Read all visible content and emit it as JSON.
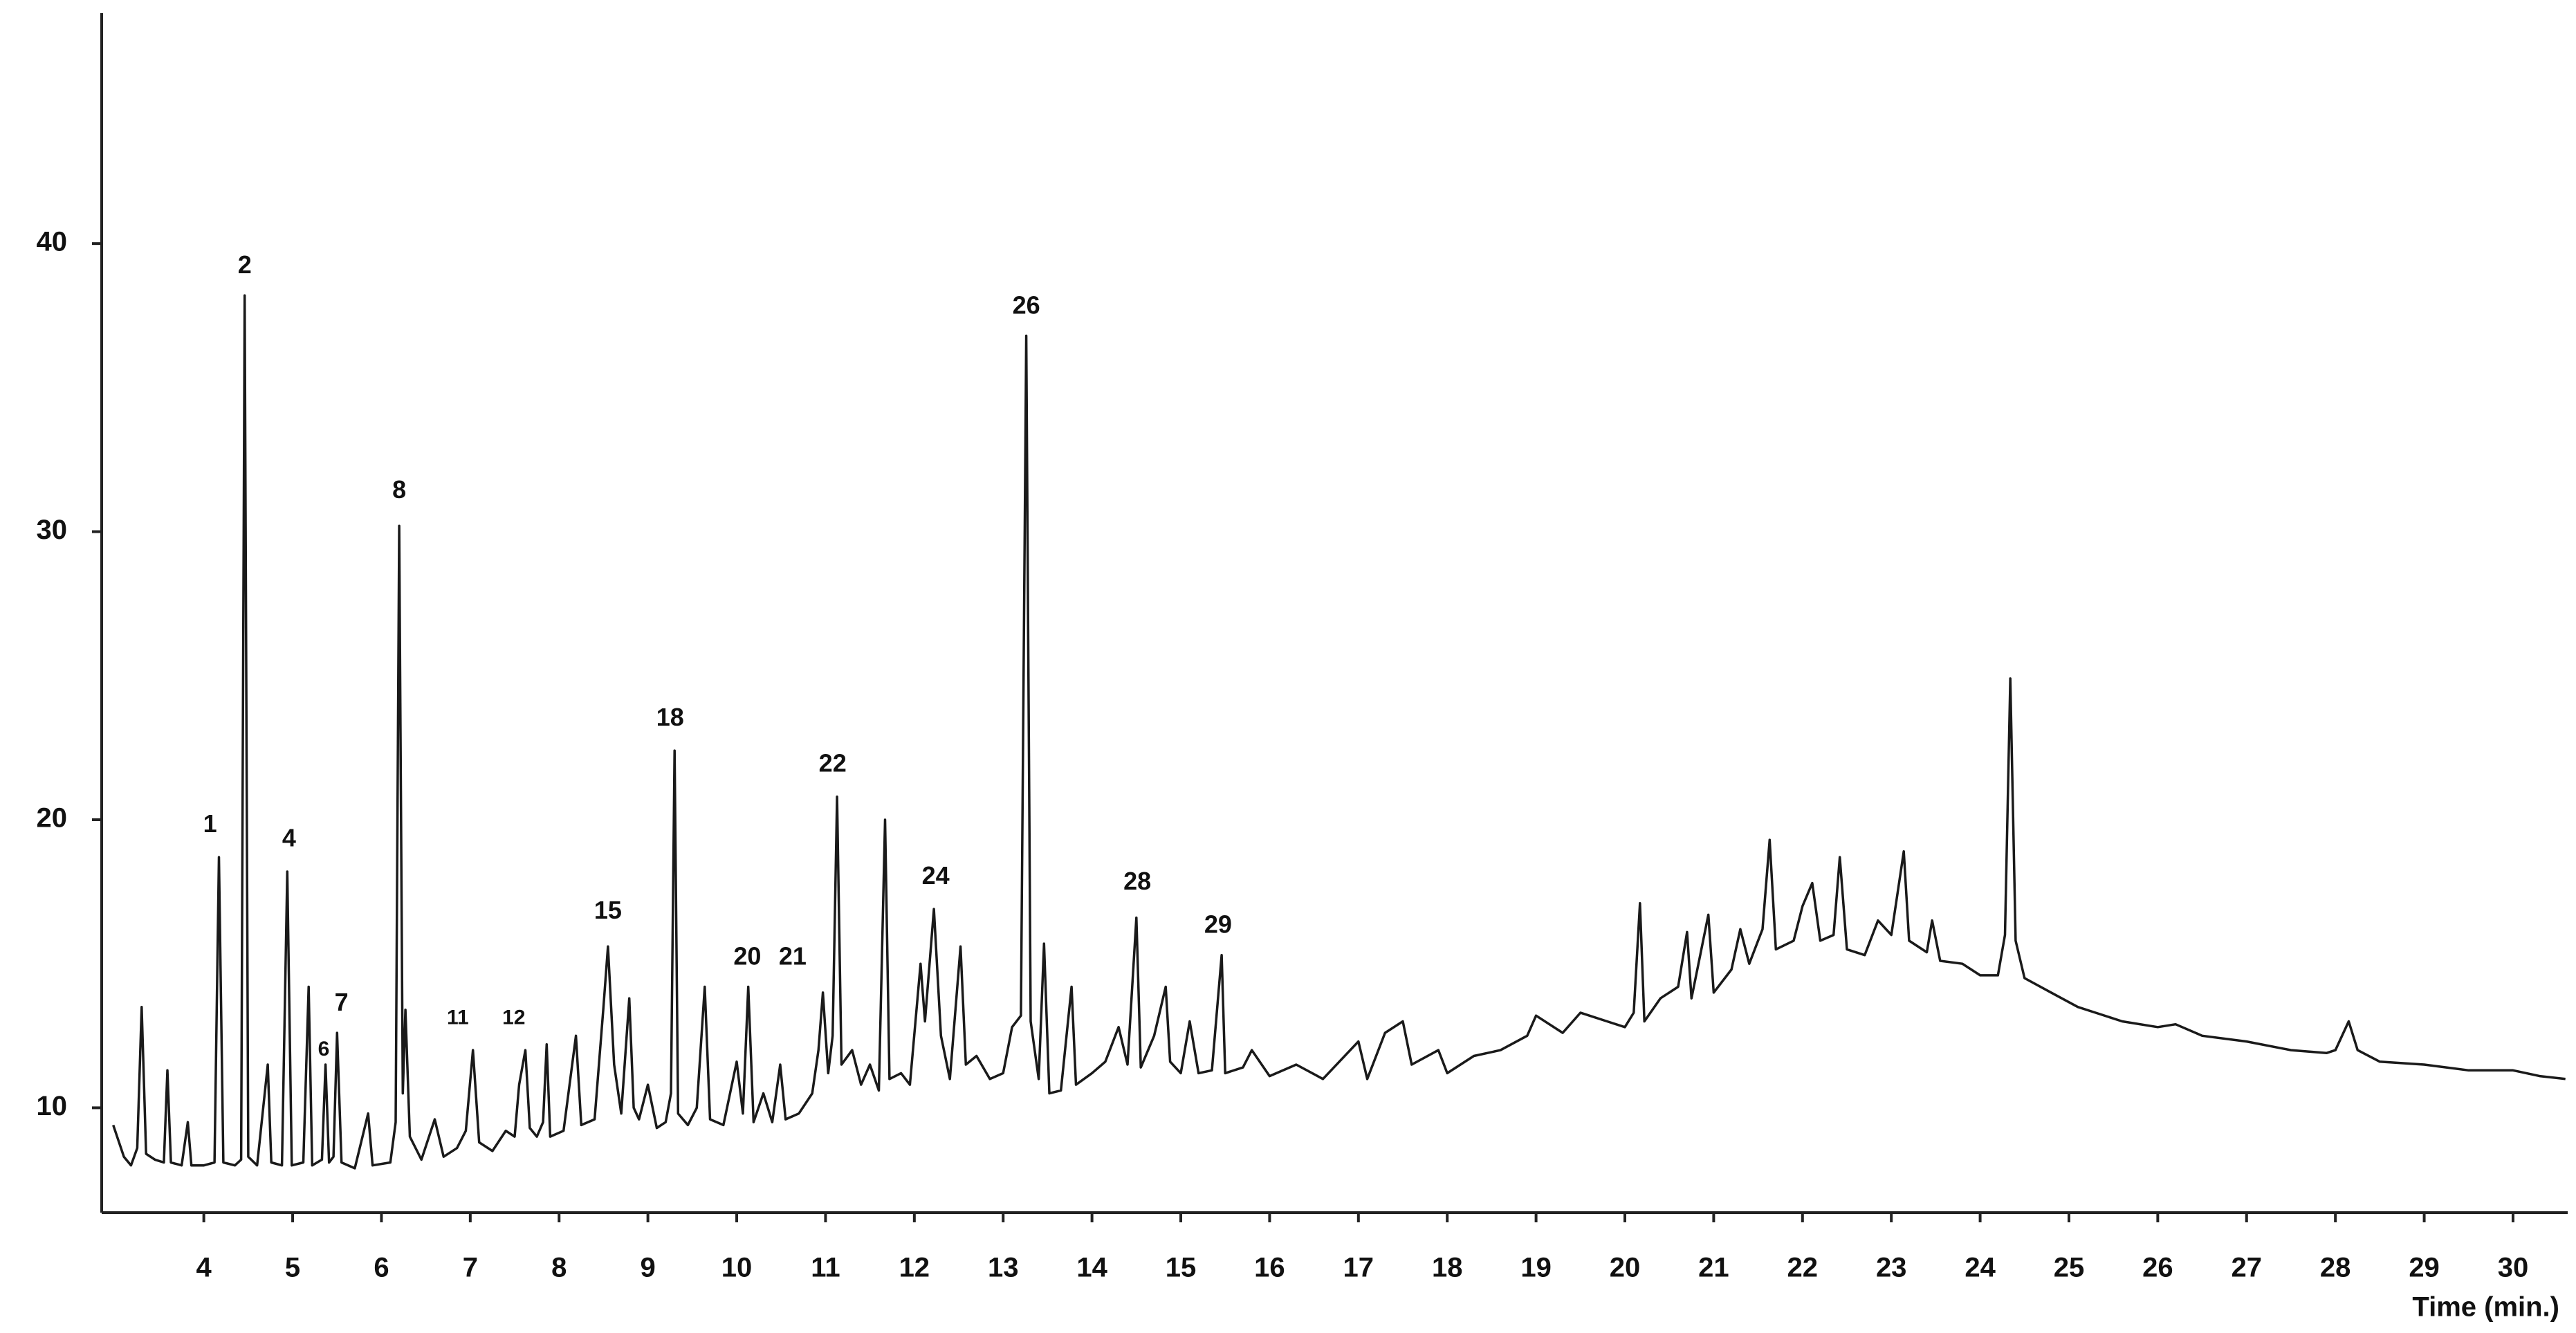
{
  "chart_data": {
    "type": "line",
    "x_label": "Time (min.)",
    "color": "#1a1a1a",
    "xlim": [
      2.85,
      30.6
    ],
    "ylim": [
      6.36,
      48
    ],
    "xticks": [
      4,
      5,
      6,
      7,
      8,
      9,
      10,
      11,
      12,
      13,
      14,
      15,
      16,
      17,
      18,
      19,
      20,
      21,
      22,
      23,
      24,
      25,
      26,
      27,
      28,
      29,
      30
    ],
    "yticks": [
      10,
      20,
      30,
      40
    ],
    "x": [
      2.98,
      3.1,
      3.18,
      3.25,
      3.3,
      3.35,
      3.45,
      3.55,
      3.59,
      3.63,
      3.75,
      3.82,
      3.86,
      4.0,
      4.12,
      4.17,
      4.22,
      4.35,
      4.42,
      4.46,
      4.5,
      4.6,
      4.72,
      4.76,
      4.88,
      4.94,
      4.99,
      5.12,
      5.18,
      5.22,
      5.33,
      5.37,
      5.41,
      5.46,
      5.5,
      5.55,
      5.7,
      5.85,
      5.9,
      6.1,
      6.16,
      6.2,
      6.24,
      6.27,
      6.32,
      6.45,
      6.6,
      6.7,
      6.85,
      6.95,
      7.03,
      7.1,
      7.25,
      7.4,
      7.5,
      7.55,
      7.62,
      7.67,
      7.75,
      7.82,
      7.86,
      7.9,
      8.05,
      8.19,
      8.25,
      8.4,
      8.5,
      8.55,
      8.62,
      8.7,
      8.79,
      8.84,
      8.9,
      9.0,
      9.1,
      9.2,
      9.26,
      9.3,
      9.34,
      9.45,
      9.55,
      9.64,
      9.7,
      9.85,
      10.0,
      10.07,
      10.13,
      10.19,
      10.3,
      10.4,
      10.49,
      10.55,
      10.7,
      10.85,
      10.92,
      10.97,
      11.03,
      11.08,
      11.13,
      11.18,
      11.3,
      11.4,
      11.5,
      11.6,
      11.67,
      11.72,
      11.85,
      11.95,
      12.07,
      12.12,
      12.22,
      12.3,
      12.4,
      12.52,
      12.58,
      12.7,
      12.85,
      13.0,
      13.1,
      13.2,
      13.26,
      13.31,
      13.4,
      13.46,
      13.52,
      13.65,
      13.77,
      13.82,
      14.0,
      14.15,
      14.3,
      14.4,
      14.5,
      14.55,
      14.7,
      14.83,
      14.88,
      15.0,
      15.1,
      15.2,
      15.35,
      15.46,
      15.5,
      15.7,
      15.8,
      16.0,
      16.3,
      16.6,
      17.0,
      17.1,
      17.3,
      17.5,
      17.6,
      17.9,
      18.0,
      18.3,
      18.6,
      18.9,
      19.0,
      19.3,
      19.5,
      19.8,
      20.0,
      20.1,
      20.17,
      20.22,
      20.4,
      20.6,
      20.7,
      20.75,
      20.94,
      21.0,
      21.2,
      21.3,
      21.4,
      21.55,
      21.63,
      21.7,
      21.9,
      22.0,
      22.11,
      22.2,
      22.35,
      22.42,
      22.5,
      22.7,
      22.85,
      23.0,
      23.14,
      23.2,
      23.4,
      23.46,
      23.55,
      23.8,
      24.0,
      24.2,
      24.28,
      24.34,
      24.4,
      24.5,
      24.8,
      25.1,
      25.3,
      25.6,
      26.0,
      26.2,
      26.5,
      27.0,
      27.5,
      27.9,
      28.0,
      28.15,
      28.25,
      28.5,
      29.0,
      29.5,
      30.0,
      30.3,
      30.59
    ],
    "values": [
      9.4,
      8.3,
      8.0,
      8.6,
      13.5,
      8.4,
      8.2,
      8.1,
      11.3,
      8.1,
      8.0,
      9.5,
      8.0,
      8.0,
      8.1,
      18.7,
      8.1,
      8.0,
      8.2,
      38.2,
      8.3,
      8.0,
      11.5,
      8.1,
      8.0,
      18.2,
      8.0,
      8.1,
      14.2,
      8.0,
      8.2,
      11.5,
      8.1,
      8.3,
      12.6,
      8.1,
      7.9,
      9.8,
      8.0,
      8.1,
      9.5,
      30.2,
      10.5,
      13.4,
      9.0,
      8.2,
      9.6,
      8.3,
      8.6,
      9.2,
      12.0,
      8.8,
      8.5,
      9.2,
      9.0,
      10.8,
      12.0,
      9.3,
      9.0,
      9.5,
      12.2,
      9.0,
      9.2,
      12.5,
      9.4,
      9.6,
      13.5,
      15.6,
      11.5,
      9.8,
      13.8,
      10.0,
      9.6,
      10.8,
      9.3,
      9.5,
      10.5,
      22.4,
      9.8,
      9.4,
      10.0,
      14.2,
      9.6,
      9.4,
      11.6,
      9.8,
      14.2,
      9.5,
      10.5,
      9.5,
      11.5,
      9.6,
      9.8,
      10.5,
      12.0,
      14.0,
      11.2,
      12.5,
      20.8,
      11.5,
      12.0,
      10.8,
      11.5,
      10.6,
      20.0,
      11.0,
      11.2,
      10.8,
      15.0,
      13.0,
      16.9,
      12.5,
      11.0,
      15.6,
      11.5,
      11.8,
      11.0,
      11.2,
      12.8,
      13.2,
      36.8,
      13.0,
      11.0,
      15.7,
      10.5,
      10.6,
      14.2,
      10.8,
      11.2,
      11.6,
      12.8,
      11.5,
      16.6,
      11.4,
      12.5,
      14.2,
      11.6,
      11.2,
      13.0,
      11.2,
      11.3,
      15.3,
      11.2,
      11.4,
      12.0,
      11.1,
      11.5,
      11.0,
      12.3,
      11.0,
      12.6,
      13.0,
      11.5,
      12.0,
      11.2,
      11.8,
      12.0,
      12.5,
      13.2,
      12.6,
      13.3,
      13.0,
      12.8,
      13.3,
      17.1,
      13.0,
      13.8,
      14.2,
      16.1,
      13.8,
      16.7,
      14.0,
      14.8,
      16.2,
      15.0,
      16.2,
      19.3,
      15.5,
      15.8,
      17.0,
      17.8,
      15.8,
      16.0,
      18.7,
      15.5,
      15.3,
      16.5,
      16.0,
      18.9,
      15.8,
      15.4,
      16.5,
      15.1,
      15.0,
      14.6,
      14.6,
      16.0,
      24.9,
      15.8,
      14.5,
      14.0,
      13.5,
      13.3,
      13.0,
      12.8,
      12.9,
      12.5,
      12.3,
      12.0,
      11.9,
      12.0,
      13.0,
      12.0,
      11.6,
      11.5,
      11.3,
      11.3,
      11.1,
      11.0
    ],
    "annotations": [
      {
        "text": "1",
        "x": 4.07,
        "y": 19.8
      },
      {
        "text": "2",
        "x": 4.46,
        "y": 39.2
      },
      {
        "text": "4",
        "x": 4.96,
        "y": 19.3
      },
      {
        "text": "6",
        "x": 5.35,
        "y": 12.0
      },
      {
        "text": "7",
        "x": 5.55,
        "y": 13.6
      },
      {
        "text": "8",
        "x": 6.2,
        "y": 31.4
      },
      {
        "text": "11",
        "x": 6.86,
        "y": 13.1
      },
      {
        "text": "12",
        "x": 7.49,
        "y": 13.1
      },
      {
        "text": "15",
        "x": 8.55,
        "y": 16.8
      },
      {
        "text": "18",
        "x": 9.25,
        "y": 23.5
      },
      {
        "text": "20",
        "x": 10.12,
        "y": 15.2
      },
      {
        "text": "21",
        "x": 10.63,
        "y": 15.2
      },
      {
        "text": "22",
        "x": 11.08,
        "y": 21.9
      },
      {
        "text": "24",
        "x": 12.24,
        "y": 18.0
      },
      {
        "text": "26",
        "x": 13.26,
        "y": 37.8
      },
      {
        "text": "28",
        "x": 14.51,
        "y": 17.8
      },
      {
        "text": "29",
        "x": 15.42,
        "y": 16.3
      }
    ]
  }
}
